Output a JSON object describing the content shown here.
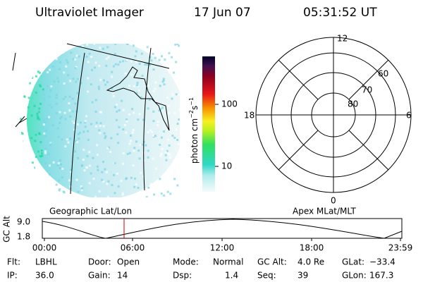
{
  "header": {
    "title": "Ultraviolet Imager",
    "date": "17 Jun 07",
    "time": "05:31:52 UT"
  },
  "colorbar": {
    "label": [
      "photon cm",
      "−2",
      "s",
      "−1"
    ],
    "ticks": [
      "100",
      "10"
    ]
  },
  "polar": {
    "hours": [
      "12",
      "18",
      "6",
      "0"
    ],
    "latitudes": [
      "60",
      "70",
      "80"
    ]
  },
  "orbit": {
    "left_label": "Geographic Lat/Lon",
    "right_label": "Apex MLat/MLT",
    "y_label": "GC Alt",
    "y_ticks": [
      "9.0",
      "1.8"
    ],
    "x_ticks": [
      "00:00",
      "06:00",
      "12:00",
      "18:00",
      "23:59"
    ]
  },
  "footer": {
    "rows": [
      [
        {
          "label": "Flt:",
          "value": "LBHL"
        },
        {
          "label": "Door:",
          "value": "Open"
        },
        {
          "label": "Mode:",
          "value": "Normal"
        },
        {
          "label": "GC Alt:",
          "value": "4.0 Re"
        },
        {
          "label": "GLat:",
          "value": "−33.4"
        }
      ],
      [
        {
          "label": "IP:",
          "value": "36.0"
        },
        {
          "label": "Gain:",
          "value": "14"
        },
        {
          "label": "Dsp:",
          "value": "1.4"
        },
        {
          "label": "Seq:",
          "value": "39"
        },
        {
          "label": "GLon:",
          "value": "167.3"
        }
      ]
    ]
  }
}
